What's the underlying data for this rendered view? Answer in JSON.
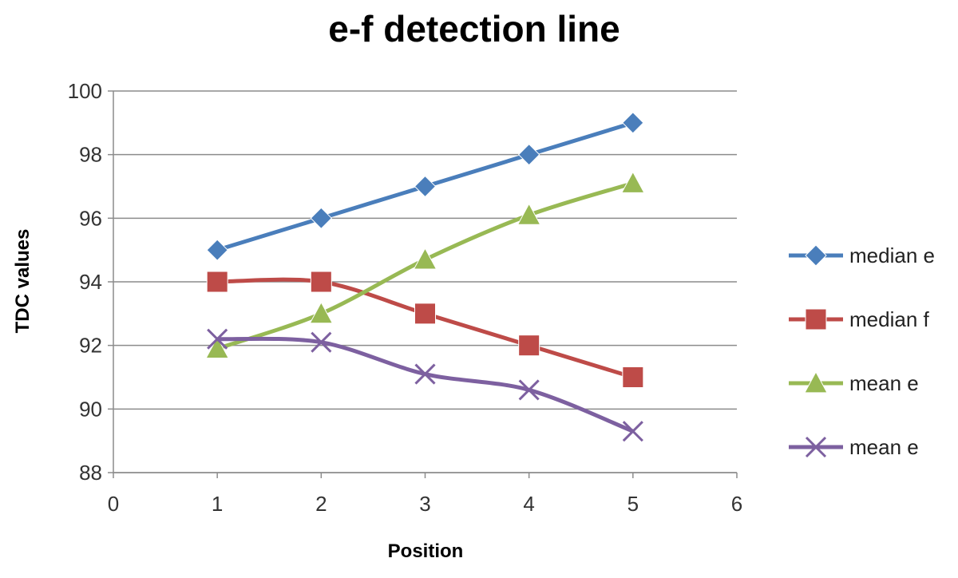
{
  "chart_data": {
    "type": "line",
    "title": "e-f detection line",
    "xlabel": "Position",
    "ylabel": "TDC values",
    "xlim": [
      0,
      6
    ],
    "ylim": [
      88,
      100
    ],
    "xticks": [
      0,
      1,
      2,
      3,
      4,
      5,
      6
    ],
    "yticks": [
      88,
      90,
      92,
      94,
      96,
      98,
      100
    ],
    "grid": "horizontal",
    "legend_position": "right",
    "x": [
      1,
      2,
      3,
      4,
      5
    ],
    "series": [
      {
        "name": "median e",
        "values": [
          95,
          96,
          97,
          98,
          99
        ],
        "color": "#4a7ebb",
        "marker": "diamond"
      },
      {
        "name": "median f",
        "values": [
          94,
          94,
          93,
          92,
          91
        ],
        "color": "#be4b48",
        "marker": "square"
      },
      {
        "name": "mean e",
        "values": [
          91.9,
          93.0,
          94.7,
          96.1,
          97.1
        ],
        "color": "#98b954",
        "marker": "triangle"
      },
      {
        "name": "mean e",
        "values": [
          92.2,
          92.1,
          91.1,
          90.6,
          89.3
        ],
        "color": "#7d60a0",
        "marker": "x"
      }
    ]
  }
}
